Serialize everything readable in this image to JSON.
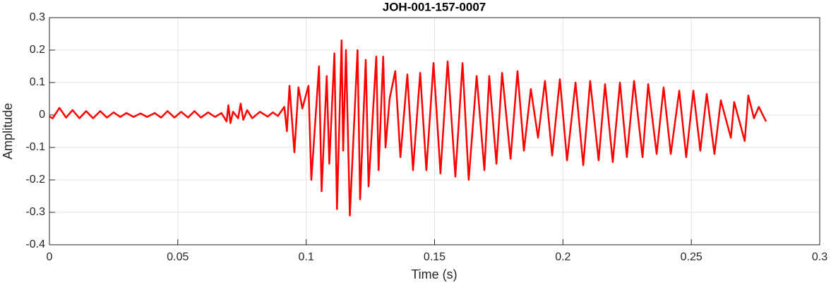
{
  "chart_data": {
    "type": "line",
    "title": "JOH-001-157-0007",
    "xlabel": "Time (s)",
    "ylabel": "Amplitude",
    "xlim": [
      0,
      0.3
    ],
    "ylim": [
      -0.4,
      0.3
    ],
    "xticks": [
      0,
      0.05,
      0.1,
      0.15,
      0.2,
      0.25,
      0.3
    ],
    "yticks": [
      -0.4,
      -0.3,
      -0.2,
      -0.1,
      0,
      0.1,
      0.2,
      0.3
    ],
    "grid": true,
    "series": [
      {
        "color": "#ff0000",
        "x": [
          0,
          0.0013,
          0.0039,
          0.0065,
          0.009,
          0.0117,
          0.0143,
          0.017,
          0.0198,
          0.0224,
          0.025,
          0.0276,
          0.03,
          0.0328,
          0.0355,
          0.038,
          0.041,
          0.0435,
          0.046,
          0.0487,
          0.0513,
          0.054,
          0.0565,
          0.059,
          0.0618,
          0.0645,
          0.067,
          0.069,
          0.0697,
          0.0705,
          0.0715,
          0.0735,
          0.0745,
          0.0755,
          0.077,
          0.079,
          0.082,
          0.085,
          0.087,
          0.089,
          0.0915,
          0.0925,
          0.0935,
          0.0954,
          0.097,
          0.0985,
          0.1009,
          0.102,
          0.105,
          0.106,
          0.108,
          0.109,
          0.111,
          0.112,
          0.1138,
          0.1144,
          0.1155,
          0.117,
          0.12,
          0.121,
          0.1232,
          0.1243,
          0.1273,
          0.1282,
          0.13,
          0.1309,
          0.1325,
          0.1347,
          0.1367,
          0.1394,
          0.1416,
          0.1444,
          0.1468,
          0.1496,
          0.1523,
          0.1551,
          0.1581,
          0.1609,
          0.1633,
          0.1664,
          0.1694,
          0.1713,
          0.1741,
          0.1763,
          0.1796,
          0.1823,
          0.1848,
          0.1875,
          0.1903,
          0.193,
          0.1958,
          0.1988,
          0.2016,
          0.2049,
          0.2079,
          0.2106,
          0.2139,
          0.2164,
          0.2194,
          0.2222,
          0.2249,
          0.2277,
          0.231,
          0.2332,
          0.2365,
          0.2392,
          0.242,
          0.2453,
          0.248,
          0.2508,
          0.2535,
          0.256,
          0.259,
          0.2615,
          0.2654,
          0.2667,
          0.2708,
          0.2722,
          0.2744,
          0.2763,
          0.2791
        ],
        "values": [
          -0.005,
          -0.01,
          0.022,
          -0.008,
          0.015,
          -0.01,
          0.012,
          -0.01,
          0.012,
          -0.008,
          0.008,
          -0.006,
          0.006,
          -0.006,
          0.005,
          -0.006,
          0.006,
          -0.008,
          0.012,
          -0.008,
          0.01,
          -0.008,
          0.012,
          -0.008,
          0.008,
          -0.006,
          0.006,
          -0.02,
          0.03,
          -0.025,
          0.01,
          -0.01,
          0.035,
          -0.015,
          0.015,
          -0.01,
          0.01,
          -0.005,
          0.008,
          -0.003,
          0.025,
          -0.05,
          0.09,
          -0.115,
          0.085,
          0.02,
          0.09,
          -0.2,
          0.15,
          -0.235,
          0.12,
          -0.15,
          0.19,
          -0.29,
          0.23,
          -0.11,
          0.2,
          -0.31,
          0.2,
          -0.26,
          0.17,
          -0.22,
          0.18,
          -0.17,
          0.18,
          -0.1,
          0.05,
          0.135,
          -0.13,
          0.125,
          -0.17,
          0.13,
          -0.17,
          0.16,
          -0.18,
          0.165,
          -0.19,
          0.16,
          -0.2,
          0.12,
          -0.17,
          0.12,
          -0.15,
          0.13,
          -0.135,
          0.135,
          -0.11,
          0.08,
          -0.07,
          0.105,
          -0.125,
          0.11,
          -0.14,
          0.1,
          -0.155,
          0.105,
          -0.14,
          0.095,
          -0.145,
          0.1,
          -0.13,
          0.105,
          -0.13,
          0.095,
          -0.12,
          0.085,
          -0.12,
          0.075,
          -0.13,
          0.075,
          -0.11,
          0.065,
          -0.12,
          0.045,
          -0.07,
          0.04,
          -0.08,
          0.06,
          -0.01,
          0.025,
          -0.02
        ]
      }
    ]
  }
}
